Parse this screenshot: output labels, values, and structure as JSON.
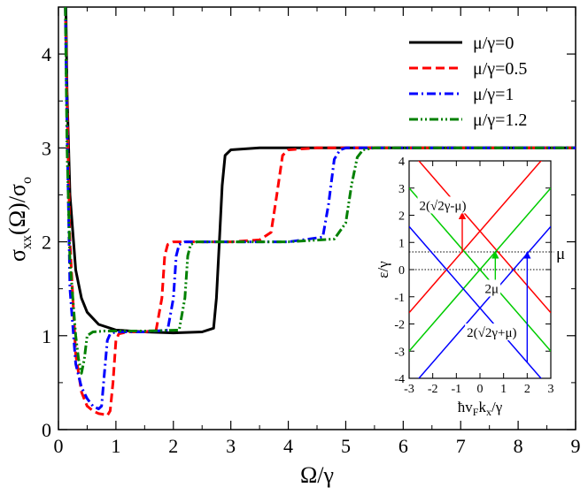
{
  "chart_data": [
    {
      "type": "line",
      "title": "",
      "xlabel": "Ω/γ",
      "ylabel": {
        "main": "σ",
        "sub1": "xx",
        "mid": "(Ω)/σ",
        "sub2": "o"
      },
      "xlim": [
        0,
        9
      ],
      "ylim": [
        0,
        4.5
      ],
      "xticks": [
        0,
        1,
        2,
        3,
        4,
        5,
        6,
        7,
        8,
        9
      ],
      "yticks": [
        0,
        1,
        2,
        3,
        4
      ],
      "legend_position": "top-right",
      "series": [
        {
          "name": "μ/γ=0",
          "color": "#000000",
          "dash": "solid",
          "mu": 0,
          "x": [
            0.13,
            0.15,
            0.2,
            0.3,
            0.4,
            0.5,
            0.7,
            1.0,
            1.5,
            2.0,
            2.5,
            2.7,
            2.75,
            2.8,
            2.85,
            2.9,
            3.0,
            3.5,
            4,
            6,
            9
          ],
          "y": [
            4.5,
            3.6,
            2.5,
            1.7,
            1.4,
            1.25,
            1.12,
            1.06,
            1.04,
            1.03,
            1.04,
            1.08,
            1.4,
            2.0,
            2.6,
            2.92,
            2.98,
            3.0,
            3.0,
            3.0,
            3.0
          ]
        },
        {
          "name": "μ/γ=0.5",
          "color": "#ff0000",
          "dash": "dashed",
          "mu": 0.5,
          "x": [
            0.12,
            0.15,
            0.2,
            0.3,
            0.4,
            0.5,
            0.6,
            0.7,
            0.8,
            0.85,
            0.9,
            0.95,
            1.0,
            1.05,
            1.2,
            1.5,
            1.7,
            1.8,
            1.85,
            1.9,
            2.0,
            2.5,
            3.0,
            3.5,
            3.7,
            3.8,
            3.9,
            4.0,
            4.5,
            6,
            9
          ],
          "y": [
            4.5,
            3.5,
            2.0,
            0.8,
            0.4,
            0.25,
            0.2,
            0.17,
            0.16,
            0.15,
            0.2,
            0.5,
            0.95,
            1.02,
            1.04,
            1.04,
            1.06,
            1.4,
            1.85,
            1.97,
            2.0,
            2.0,
            2.0,
            2.02,
            2.1,
            2.5,
            2.92,
            2.98,
            3.0,
            3.0,
            3.0
          ]
        },
        {
          "name": "μ/γ=1",
          "color": "#0000ff",
          "dash": "dashdot",
          "mu": 1,
          "x": [
            0.12,
            0.15,
            0.2,
            0.3,
            0.4,
            0.5,
            0.6,
            0.7,
            0.75,
            0.8,
            0.85,
            0.9,
            1.0,
            1.5,
            1.9,
            2.0,
            2.05,
            2.1,
            2.2,
            3.0,
            4.0,
            4.6,
            4.7,
            4.8,
            4.9,
            5.0,
            5.5,
            9
          ],
          "y": [
            4.5,
            3.2,
            1.5,
            0.7,
            0.45,
            0.33,
            0.25,
            0.22,
            0.25,
            0.6,
            0.95,
            1.02,
            1.04,
            1.04,
            1.06,
            1.4,
            1.85,
            1.97,
            2.0,
            2.0,
            2.0,
            2.05,
            2.4,
            2.88,
            2.98,
            3.0,
            3.0,
            3.0
          ]
        },
        {
          "name": "μ/γ=1.2",
          "color": "#008000",
          "dash": "dashdotdot",
          "mu": 1.2,
          "x": [
            0.12,
            0.15,
            0.2,
            0.3,
            0.35,
            0.4,
            0.45,
            0.5,
            0.6,
            0.8,
            1.0,
            1.5,
            2.1,
            2.2,
            2.25,
            2.3,
            2.4,
            3.0,
            4.0,
            4.8,
            5.0,
            5.1,
            5.2,
            5.3,
            5.5,
            9
          ],
          "y": [
            4.5,
            3.0,
            1.8,
            1.0,
            0.75,
            0.6,
            0.75,
            1.0,
            1.04,
            1.05,
            1.05,
            1.05,
            1.06,
            1.4,
            1.85,
            1.97,
            2.0,
            2.0,
            2.0,
            2.03,
            2.2,
            2.6,
            2.9,
            2.98,
            3.0,
            3.0
          ]
        }
      ]
    },
    {
      "type": "line",
      "title": "",
      "xlabel": "ħv_Fk_x/γ",
      "ylabel": "ε/γ",
      "xlim": [
        -3,
        3
      ],
      "ylim": [
        -4,
        4
      ],
      "xticks": [
        -3,
        -2,
        -1,
        0,
        1,
        2,
        3
      ],
      "yticks": [
        -4,
        -3,
        -2,
        -1,
        0,
        1,
        2,
        3,
        4
      ],
      "dotted_levels": [
        0,
        0.65
      ],
      "mu_label": "μ",
      "series": [
        {
          "name": "red bands",
          "color": "#ff0000",
          "lines": [
            {
              "slope": 1,
              "offset": 1.4142
            },
            {
              "slope": -1,
              "offset": 1.4142
            }
          ]
        },
        {
          "name": "green bands",
          "color": "#00cc00",
          "lines": [
            {
              "slope": 1,
              "offset": 0
            },
            {
              "slope": -1,
              "offset": 0
            }
          ]
        },
        {
          "name": "blue bands",
          "color": "#0000ff",
          "lines": [
            {
              "slope": 1,
              "offset": -1.4142
            },
            {
              "slope": -1,
              "offset": -1.4142
            }
          ]
        }
      ],
      "arrows": [
        {
          "label": "2(√2γ-μ)",
          "color": "#ff0000",
          "x": -0.75,
          "y_from": 0.65,
          "y_to": 2.1
        },
        {
          "label": "2μ",
          "color": "#00cc00",
          "x": 0.65,
          "y_from": -0.6,
          "y_to": 0.65
        },
        {
          "label": "2(√2γ+μ)",
          "color": "#0000ff",
          "x": 2.0,
          "y_from": -3.4,
          "y_to": 0.65
        }
      ]
    }
  ]
}
